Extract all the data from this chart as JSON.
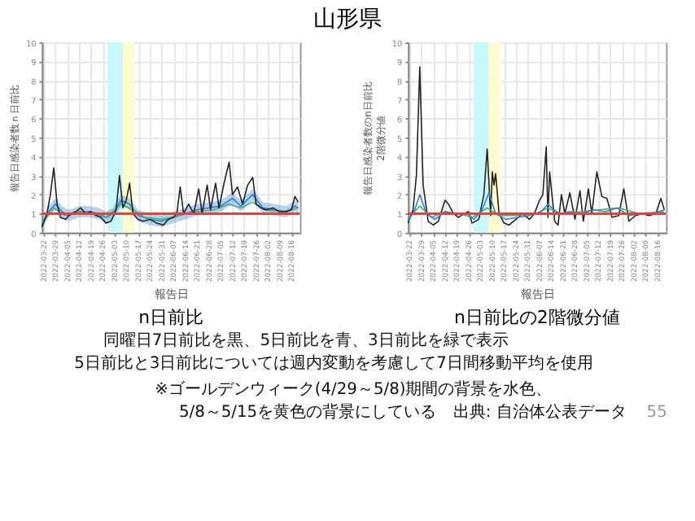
{
  "chart_data": [
    {
      "type": "line",
      "title": "n日前比",
      "xlabel": "報告日",
      "ylabel": "報告日感染者数ｎ日前比",
      "grid": true,
      "xlim": [
        "2022-03-21",
        "2022-08-21"
      ],
      "ylim": [
        0,
        10
      ],
      "yticks": [
        0,
        1,
        2,
        3,
        4,
        5,
        6,
        7,
        8,
        9,
        10
      ],
      "xticks": [
        "2022-03-22",
        "2022-03-29",
        "2022-04-05",
        "2022-04-12",
        "2022-04-19",
        "2022-04-26",
        "2022-05-03",
        "2022-05-10",
        "2022-05-17",
        "2022-05-24",
        "2022-05-31",
        "2022-06-07",
        "2022-06-14",
        "2022-06-21",
        "2022-06-28",
        "2022-07-05",
        "2022-07-12",
        "2022-07-19",
        "2022-07-26",
        "2022-08-02",
        "2022-08-09",
        "2022-08-16"
      ],
      "bands": [
        {
          "axis": "x",
          "from": "2022-04-29",
          "to": "2022-05-08",
          "color": "#c8f8fb"
        },
        {
          "axis": "x",
          "from": "2022-05-08",
          "to": "2022-05-15",
          "color": "#fdfdd0"
        }
      ],
      "ref_lines": [
        {
          "axis": "y",
          "value": 1,
          "color": "#e8413c"
        }
      ],
      "series": [
        {
          "color": "#2f7fd6",
          "x": [
            "2022-03-21",
            "2022-03-25",
            "2022-03-29",
            "2022-04-02",
            "2022-04-06",
            "2022-04-12",
            "2022-04-18",
            "2022-04-24",
            "2022-04-28",
            "2022-05-02",
            "2022-05-07",
            "2022-05-12",
            "2022-05-17",
            "2022-05-24",
            "2022-05-31",
            "2022-06-07",
            "2022-06-14",
            "2022-06-21",
            "2022-06-28",
            "2022-07-05",
            "2022-07-12",
            "2022-07-17",
            "2022-07-24",
            "2022-07-30",
            "2022-08-06",
            "2022-08-13",
            "2022-08-18",
            "2022-08-20"
          ],
          "values": [
            0.4,
            1.1,
            1.5,
            1.1,
            0.9,
            1.1,
            1.1,
            1.0,
            0.8,
            1.0,
            1.7,
            1.5,
            0.9,
            0.7,
            0.6,
            0.8,
            1.0,
            1.2,
            1.3,
            1.4,
            1.8,
            1.4,
            2.0,
            1.3,
            1.2,
            1.1,
            1.4,
            1.3
          ],
          "lower": [
            0.2,
            0.8,
            1.2,
            0.8,
            0.6,
            0.8,
            0.8,
            0.7,
            0.5,
            0.7,
            1.4,
            1.2,
            0.6,
            0.4,
            0.3,
            0.5,
            0.7,
            0.9,
            1.0,
            1.1,
            1.5,
            1.1,
            1.7,
            1.0,
            0.9,
            0.8,
            1.1,
            1.0
          ],
          "upper": [
            0.6,
            1.4,
            1.8,
            1.4,
            1.2,
            1.4,
            1.4,
            1.3,
            1.1,
            1.3,
            2.0,
            1.8,
            1.2,
            1.0,
            0.9,
            1.1,
            1.3,
            1.5,
            1.6,
            1.7,
            2.1,
            1.7,
            2.3,
            1.6,
            1.5,
            1.4,
            1.7,
            1.6
          ]
        },
        {
          "color": "#3cb371",
          "x": [
            "2022-03-21",
            "2022-03-28",
            "2022-04-04",
            "2022-04-12",
            "2022-04-20",
            "2022-04-28",
            "2022-05-07",
            "2022-05-14",
            "2022-05-21",
            "2022-05-31",
            "2022-06-10",
            "2022-06-21",
            "2022-07-01",
            "2022-07-10",
            "2022-07-17",
            "2022-07-24",
            "2022-07-31",
            "2022-08-10",
            "2022-08-20"
          ],
          "values": [
            0.5,
            1.3,
            0.9,
            1.1,
            1.0,
            0.8,
            1.5,
            1.2,
            0.8,
            0.7,
            0.9,
            1.1,
            1.2,
            1.5,
            1.3,
            1.6,
            1.2,
            1.1,
            1.3
          ]
        },
        {
          "color": "#222222",
          "x": [
            "2022-03-21",
            "2022-03-24",
            "2022-03-26",
            "2022-03-28",
            "2022-03-30",
            "2022-04-01",
            "2022-04-04",
            "2022-04-07",
            "2022-04-10",
            "2022-04-13",
            "2022-04-16",
            "2022-04-19",
            "2022-04-22",
            "2022-04-25",
            "2022-04-28",
            "2022-05-01",
            "2022-05-04",
            "2022-05-06",
            "2022-05-08",
            "2022-05-10",
            "2022-05-12",
            "2022-05-14",
            "2022-05-17",
            "2022-05-20",
            "2022-05-24",
            "2022-05-28",
            "2022-06-01",
            "2022-06-04",
            "2022-06-07",
            "2022-06-09",
            "2022-06-11",
            "2022-06-13",
            "2022-06-16",
            "2022-06-19",
            "2022-06-22",
            "2022-06-24",
            "2022-06-27",
            "2022-06-29",
            "2022-07-02",
            "2022-07-04",
            "2022-07-07",
            "2022-07-10",
            "2022-07-12",
            "2022-07-15",
            "2022-07-18",
            "2022-07-21",
            "2022-07-24",
            "2022-07-26",
            "2022-07-29",
            "2022-08-01",
            "2022-08-05",
            "2022-08-09",
            "2022-08-13",
            "2022-08-16",
            "2022-08-18",
            "2022-08-20"
          ],
          "values": [
            0.3,
            1.0,
            2.0,
            3.4,
            1.5,
            0.8,
            0.7,
            1.0,
            1.1,
            1.3,
            1.0,
            1.1,
            0.9,
            0.8,
            0.5,
            0.6,
            1.2,
            3.0,
            1.3,
            1.7,
            2.6,
            1.0,
            0.7,
            0.6,
            0.7,
            0.5,
            0.4,
            0.7,
            0.8,
            1.0,
            2.4,
            1.0,
            1.5,
            1.0,
            2.3,
            1.0,
            2.5,
            1.2,
            2.6,
            1.3,
            2.6,
            3.7,
            2.0,
            2.4,
            1.5,
            2.5,
            2.9,
            1.5,
            1.3,
            1.2,
            1.3,
            1.1,
            1.1,
            1.2,
            1.9,
            1.6
          ]
        }
      ]
    },
    {
      "type": "line",
      "title": "n日前比の2階微分値",
      "xlabel": "報告日",
      "ylabel": "報告日感染者数のn日前比\n2階微分値",
      "grid": true,
      "xlim": [
        "2022-03-21",
        "2022-08-21"
      ],
      "ylim": [
        0,
        10
      ],
      "yticks": [
        0,
        1,
        2,
        3,
        4,
        5,
        6,
        7,
        8,
        9,
        10
      ],
      "xticks": [
        "2022-03-22",
        "2022-03-29",
        "2022-04-05",
        "2022-04-12",
        "2022-04-19",
        "2022-04-26",
        "2022-05-03",
        "2022-05-10",
        "2022-05-17",
        "2022-05-24",
        "2022-05-31",
        "2022-06-07",
        "2022-06-14",
        "2022-06-21",
        "2022-06-28",
        "2022-07-05",
        "2022-07-12",
        "2022-07-19",
        "2022-07-26",
        "2022-08-02",
        "2022-08-09",
        "2022-08-16"
      ],
      "bands": [
        {
          "axis": "x",
          "from": "2022-04-29",
          "to": "2022-05-08",
          "color": "#c8f8fb"
        },
        {
          "axis": "x",
          "from": "2022-05-08",
          "to": "2022-05-15",
          "color": "#fdfdd0"
        }
      ],
      "ref_lines": [
        {
          "axis": "y",
          "value": 1,
          "color": "#e8413c"
        }
      ],
      "series": [
        {
          "color": "#222222",
          "x": [
            "2022-03-21",
            "2022-03-24",
            "2022-03-26",
            "2022-03-28",
            "2022-03-30",
            "2022-04-02",
            "2022-04-05",
            "2022-04-08",
            "2022-04-12",
            "2022-04-14",
            "2022-04-17",
            "2022-04-20",
            "2022-04-23",
            "2022-04-26",
            "2022-04-28",
            "2022-05-02",
            "2022-05-05",
            "2022-05-07",
            "2022-05-09",
            "2022-05-10",
            "2022-05-11",
            "2022-05-12",
            "2022-05-14",
            "2022-05-17",
            "2022-05-20",
            "2022-05-24",
            "2022-05-28",
            "2022-06-01",
            "2022-06-04",
            "2022-06-07",
            "2022-06-09",
            "2022-06-11",
            "2022-06-12",
            "2022-06-13",
            "2022-06-16",
            "2022-06-18",
            "2022-06-20",
            "2022-06-22",
            "2022-06-25",
            "2022-06-28",
            "2022-07-01",
            "2022-07-03",
            "2022-07-06",
            "2022-07-08",
            "2022-07-11",
            "2022-07-14",
            "2022-07-17",
            "2022-07-20",
            "2022-07-24",
            "2022-07-27",
            "2022-07-30",
            "2022-08-03",
            "2022-08-07",
            "2022-08-11",
            "2022-08-15",
            "2022-08-18",
            "2022-08-20"
          ],
          "values": [
            0.5,
            1.2,
            3.0,
            8.7,
            2.5,
            0.6,
            0.4,
            0.6,
            1.7,
            1.5,
            1.0,
            0.8,
            1.0,
            1.1,
            0.5,
            0.7,
            2.0,
            4.4,
            0.9,
            3.2,
            2.5,
            3.1,
            1.0,
            0.5,
            0.4,
            0.7,
            1.0,
            0.7,
            1.0,
            1.7,
            2.0,
            4.5,
            0.8,
            3.2,
            0.6,
            0.4,
            2.0,
            1.0,
            2.1,
            0.7,
            2.2,
            0.6,
            2.3,
            1.0,
            3.2,
            1.9,
            1.8,
            0.8,
            0.9,
            2.3,
            0.6,
            0.9,
            1.0,
            0.9,
            1.0,
            1.8,
            1.2
          ]
        },
        {
          "color": "#3cb371",
          "x": [
            "2022-03-21",
            "2022-03-28",
            "2022-04-04",
            "2022-04-12",
            "2022-04-20",
            "2022-04-28",
            "2022-05-07",
            "2022-05-14",
            "2022-05-24",
            "2022-06-05",
            "2022-06-12",
            "2022-06-20",
            "2022-07-01",
            "2022-07-12",
            "2022-07-24",
            "2022-08-05",
            "2022-08-20"
          ],
          "values": [
            0.7,
            1.4,
            0.8,
            1.1,
            1.0,
            0.8,
            1.3,
            0.9,
            0.9,
            1.0,
            1.3,
            1.0,
            1.1,
            1.2,
            1.3,
            1.0,
            1.1
          ]
        },
        {
          "color": "#2f7fd6",
          "x": [
            "2022-03-21",
            "2022-03-25",
            "2022-03-28",
            "2022-04-01",
            "2022-04-06",
            "2022-04-12",
            "2022-04-18",
            "2022-04-25",
            "2022-04-29",
            "2022-05-04",
            "2022-05-08",
            "2022-05-12",
            "2022-05-18",
            "2022-05-25",
            "2022-06-01",
            "2022-06-08",
            "2022-06-12",
            "2022-06-18",
            "2022-06-25",
            "2022-07-02",
            "2022-07-09",
            "2022-07-16",
            "2022-07-23",
            "2022-07-30",
            "2022-08-06",
            "2022-08-13",
            "2022-08-20"
          ],
          "values": [
            0.6,
            1.2,
            2.0,
            1.0,
            0.7,
            1.1,
            1.0,
            1.0,
            0.7,
            1.2,
            2.1,
            1.0,
            0.7,
            0.8,
            0.9,
            1.1,
            1.5,
            1.0,
            1.1,
            1.0,
            1.2,
            1.1,
            1.3,
            0.9,
            1.0,
            1.0,
            1.2
          ]
        }
      ]
    },
    {
      "type": "other",
      "title": "山形県",
      "annotations": [
        "同曜日7日前比を黒、5日前比を青、3日前比を緑で表示",
        "5日前比と3日前比については週内変動を考慮して7日間移動平均を使用",
        "※ゴールデンウィーク(4/29～5/8)期間の背景を水色、",
        "5/8～5/15を黄色の背景にしている",
        "出典: 自治体公表データ",
        "55"
      ]
    }
  ]
}
